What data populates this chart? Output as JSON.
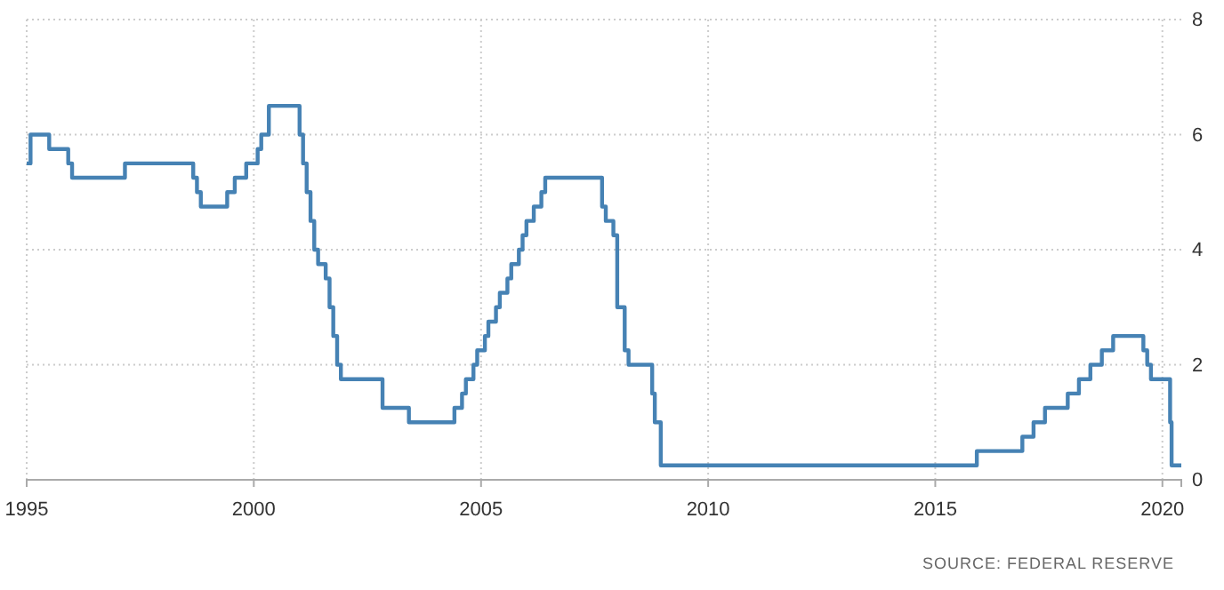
{
  "chart_data": {
    "type": "step",
    "color": "#4682b4",
    "x": [
      "1995-01",
      "1995-02",
      "1995-07",
      "1995-12",
      "1996-01",
      "1997-03",
      "1998-09",
      "1998-10",
      "1998-11",
      "1999-06",
      "1999-08",
      "1999-11",
      "2000-02",
      "2000-03",
      "2000-05",
      "2001-01-03",
      "2001-01-31",
      "2001-03",
      "2001-04",
      "2001-05",
      "2001-06",
      "2001-08",
      "2001-09",
      "2001-10",
      "2001-11",
      "2001-12",
      "2002-11",
      "2003-06",
      "2004-06",
      "2004-08",
      "2004-09",
      "2004-11",
      "2004-12",
      "2005-02",
      "2005-03",
      "2005-05",
      "2005-06",
      "2005-08",
      "2005-09",
      "2005-11",
      "2005-12",
      "2006-01",
      "2006-03",
      "2006-05",
      "2006-06",
      "2007-09",
      "2007-10",
      "2007-12",
      "2008-01",
      "2008-03",
      "2008-04",
      "2008-10-08",
      "2008-10-29",
      "2008-12-16",
      "2015-12",
      "2016-12",
      "2017-03",
      "2017-06",
      "2017-12",
      "2018-03",
      "2018-06",
      "2018-09",
      "2018-12",
      "2019-08",
      "2019-09",
      "2019-10",
      "2020-03-03",
      "2020-03-15",
      "2020-06"
    ],
    "values": [
      5.5,
      6.0,
      5.75,
      5.5,
      5.25,
      5.5,
      5.25,
      5.0,
      4.75,
      5.0,
      5.25,
      5.5,
      5.75,
      6.0,
      6.5,
      6.0,
      5.5,
      5.0,
      4.5,
      4.0,
      3.75,
      3.5,
      3.0,
      2.5,
      2.0,
      1.75,
      1.25,
      1.0,
      1.25,
      1.5,
      1.75,
      2.0,
      2.25,
      2.5,
      2.75,
      3.0,
      3.25,
      3.5,
      3.75,
      4.0,
      4.25,
      4.5,
      4.75,
      5.0,
      5.25,
      4.75,
      4.5,
      4.25,
      3.0,
      2.25,
      2.0,
      1.5,
      1.0,
      0.25,
      0.5,
      0.75,
      1.0,
      1.25,
      1.5,
      1.75,
      2.0,
      2.25,
      2.5,
      2.25,
      2.0,
      1.75,
      1.0,
      0.25,
      0.25
    ],
    "xlim": [
      "1995-01",
      "2020-06"
    ],
    "xticks": [
      "1995",
      "2000",
      "2005",
      "2010",
      "2015",
      "2020"
    ],
    "ylim": [
      0,
      8
    ],
    "yticks": [
      0,
      2,
      4,
      6,
      8
    ],
    "grid": true,
    "annotations": [
      "SOURCE: FEDERAL RESERVE"
    ]
  }
}
